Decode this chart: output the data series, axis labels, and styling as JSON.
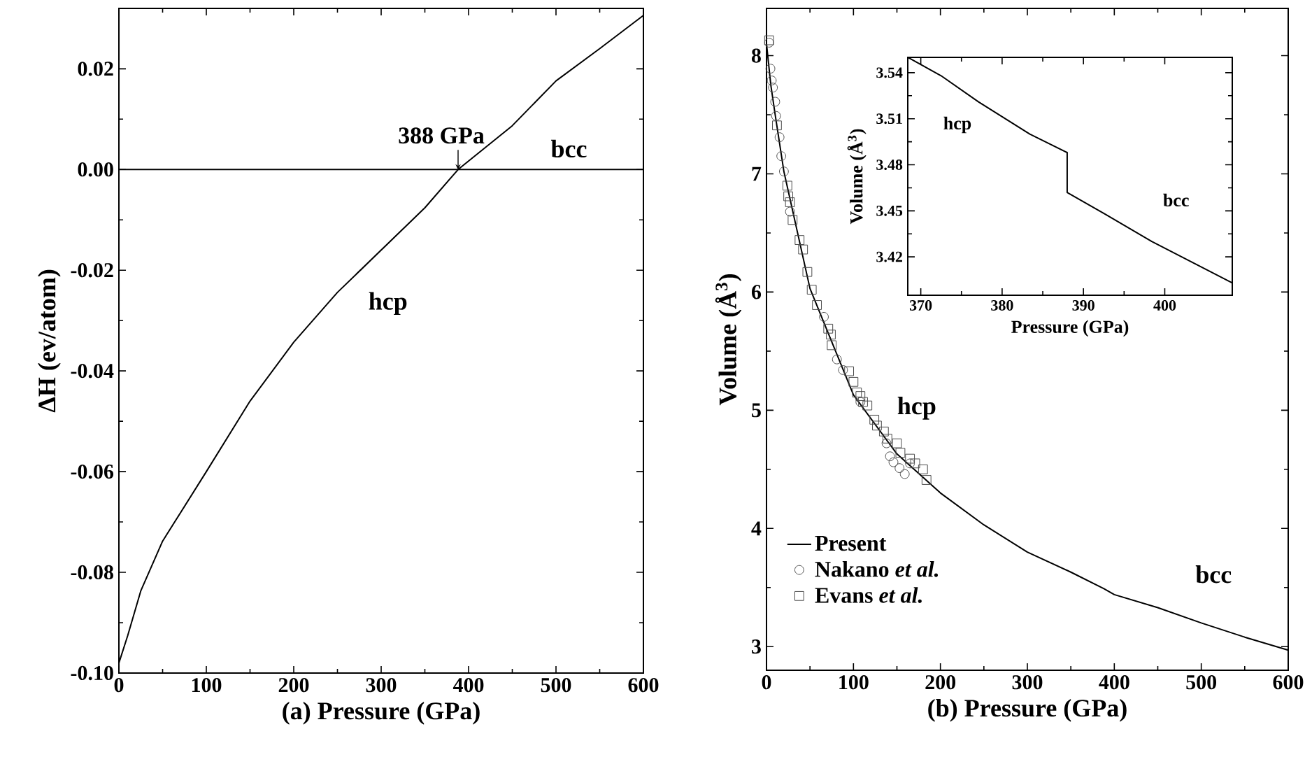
{
  "chart_data": [
    {
      "type": "line",
      "xlabel": "(a) Pressure (GPa)",
      "ylabel": "ΔH (ev/atom)",
      "xlim": [
        0,
        600
      ],
      "ylim": [
        -0.1,
        0.032
      ],
      "xticks": [
        0,
        100,
        200,
        300,
        400,
        500,
        600
      ],
      "yticks": [
        {
          "value": -0.1,
          "label": "-0.10"
        },
        {
          "value": -0.08,
          "label": "-0.08"
        },
        {
          "value": -0.06,
          "label": "-0.06"
        },
        {
          "value": -0.04,
          "label": "-0.04"
        },
        {
          "value": -0.02,
          "label": "-0.02"
        },
        {
          "value": 0,
          "label": "0.00"
        },
        {
          "value": 0.02,
          "label": "0.02"
        }
      ],
      "series": [
        {
          "color": "#000000",
          "x": [
            0,
            10,
            25,
            50,
            100,
            150,
            200,
            250,
            300,
            350,
            388,
            450,
            500,
            550,
            600
          ],
          "values": [
            -0.098,
            -0.0926,
            -0.0837,
            -0.0738,
            -0.06,
            -0.046,
            -0.0343,
            -0.0244,
            -0.016,
            -0.0076,
            0,
            0.0087,
            0.0176,
            0.024,
            0.0306
          ]
        }
      ],
      "ref_lines": [
        {
          "axis": "y",
          "value": 0,
          "color": "#000000"
        }
      ],
      "annotations": [
        {
          "text": "388 GPa",
          "x": 388,
          "y": 0
        },
        "bcc",
        "hcp"
      ]
    },
    {
      "type": "line",
      "xlabel": "(b) Pressure (GPa)",
      "ylabel": "Volume (Å$^{3}$)",
      "xlim": [
        0,
        600
      ],
      "ylim": [
        2.8,
        8.4
      ],
      "xticks": [
        0,
        100,
        200,
        300,
        400,
        500,
        600
      ],
      "yticks": [
        3,
        4,
        5,
        6,
        7,
        8
      ],
      "legend": "bottom left",
      "series": [
        {
          "name": "Present",
          "type": "line",
          "color": "#000000",
          "x": [
            0,
            5,
            10,
            20,
            50,
            100,
            150,
            200,
            250,
            300,
            350,
            388,
            400,
            450,
            500,
            550,
            600
          ],
          "values": [
            8.1,
            7.75,
            7.5,
            7.02,
            6.03,
            5.13,
            4.63,
            4.3,
            4.03,
            3.8,
            3.63,
            3.49,
            3.44,
            3.33,
            3.2,
            3.08,
            2.97
          ]
        },
        {
          "name": "Nakano *et al.*",
          "type": "scatter",
          "marker": "circle",
          "color": "#4c4c4c",
          "x": [
            3,
            4.5,
            6,
            7.4,
            10,
            11,
            15,
            17,
            20,
            27,
            66,
            81,
            88,
            108,
            138,
            142,
            146,
            153,
            159,
            165
          ],
          "values": [
            8.11,
            7.89,
            7.79,
            7.73,
            7.61,
            7.49,
            7.31,
            7.15,
            7.02,
            6.68,
            5.79,
            5.43,
            5.34,
            5.07,
            4.72,
            4.61,
            4.56,
            4.51,
            4.46,
            4.55
          ]
        },
        {
          "name": "Evans *et al.*",
          "type": "scatter",
          "marker": "square",
          "color": "#4c4c4c",
          "x": [
            3,
            12,
            24,
            25,
            27,
            30,
            38,
            42,
            47,
            52,
            58,
            71,
            74,
            75,
            95,
            100,
            104,
            108,
            111,
            116,
            124,
            127,
            135,
            139,
            150,
            154,
            165,
            171,
            180,
            184
          ],
          "values": [
            8.13,
            7.41,
            6.9,
            6.81,
            6.76,
            6.61,
            6.44,
            6.36,
            6.17,
            6.02,
            5.89,
            5.69,
            5.64,
            5.55,
            5.33,
            5.24,
            5.15,
            5.12,
            5.07,
            5.04,
            4.92,
            4.87,
            4.82,
            4.76,
            4.72,
            4.64,
            4.59,
            4.55,
            4.5,
            4.41
          ]
        }
      ],
      "annotations": [
        "hcp",
        "bcc"
      ]
    },
    {
      "type": "line",
      "xlabel": "Pressure (GPa)",
      "ylabel": "Volume (Å$^{3}$)",
      "xlim": [
        368.4,
        408.3
      ],
      "ylim": [
        3.395,
        3.55
      ],
      "xticks": [
        370,
        380,
        390,
        400
      ],
      "yticks": [
        {
          "value": 3.42,
          "label": "3.42"
        },
        {
          "value": 3.45,
          "label": "3.45"
        },
        {
          "value": 3.48,
          "label": "3.48"
        },
        {
          "value": 3.51,
          "label": "3.51"
        },
        {
          "value": 3.54,
          "label": "3.54"
        }
      ],
      "series": [
        {
          "color": "#000000",
          "x": [
            368.4,
            372.5,
            377.1,
            383.4,
            388,
            388,
            392.6,
            398.4,
            408.3
          ],
          "values": [
            3.55,
            3.538,
            3.521,
            3.5,
            3.488,
            3.462,
            3.448,
            3.43,
            3.403
          ]
        }
      ],
      "annotations": [
        "hcp",
        "bcc"
      ]
    }
  ]
}
